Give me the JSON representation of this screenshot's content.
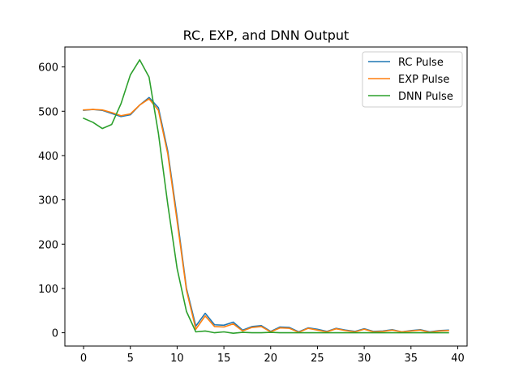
{
  "chart_data": {
    "type": "line",
    "title": "RC, EXP, and DNN Output",
    "xlabel": "",
    "ylabel": "",
    "xlim": [
      -2,
      41
    ],
    "ylim": [
      -30,
      645
    ],
    "xticks": [
      0,
      5,
      10,
      15,
      20,
      25,
      30,
      35,
      40
    ],
    "yticks": [
      0,
      100,
      200,
      300,
      400,
      500,
      600
    ],
    "grid": false,
    "legend_position": "top-right",
    "x": [
      0,
      1,
      2,
      3,
      4,
      5,
      6,
      7,
      8,
      9,
      10,
      11,
      12,
      13,
      14,
      15,
      16,
      17,
      18,
      19,
      20,
      21,
      22,
      23,
      24,
      25,
      26,
      27,
      28,
      29,
      30,
      31,
      32,
      33,
      34,
      35,
      36,
      37,
      38,
      39
    ],
    "series": [
      {
        "name": "RC Pulse",
        "color": "#1f77b4",
        "values": [
          502,
          504,
          502,
          495,
          488,
          492,
          514,
          531,
          508,
          410,
          260,
          100,
          15,
          44,
          18,
          17,
          24,
          6,
          14,
          16,
          3,
          13,
          12,
          2,
          11,
          8,
          3,
          10,
          6,
          3,
          9,
          3,
          4,
          7,
          2,
          5,
          7,
          2,
          5,
          6
        ]
      },
      {
        "name": "EXP Pulse",
        "color": "#ff7f0e",
        "values": [
          503,
          504,
          503,
          497,
          490,
          494,
          514,
          528,
          502,
          404,
          252,
          96,
          8,
          38,
          14,
          13,
          20,
          4,
          12,
          14,
          2,
          11,
          10,
          1,
          10,
          6,
          2,
          9,
          5,
          2,
          8,
          2,
          3,
          6,
          2,
          4,
          6,
          1,
          4,
          5
        ]
      },
      {
        "name": "DNN Pulse",
        "color": "#2ca02c",
        "values": [
          484,
          475,
          461,
          470,
          517,
          582,
          616,
          577,
          450,
          290,
          145,
          48,
          2,
          4,
          0,
          2,
          -1,
          1,
          0,
          0,
          1,
          0,
          0,
          0,
          0,
          0,
          0,
          0,
          0,
          0,
          0,
          0,
          0,
          0,
          0,
          0,
          0,
          0,
          0,
          0
        ]
      }
    ]
  }
}
